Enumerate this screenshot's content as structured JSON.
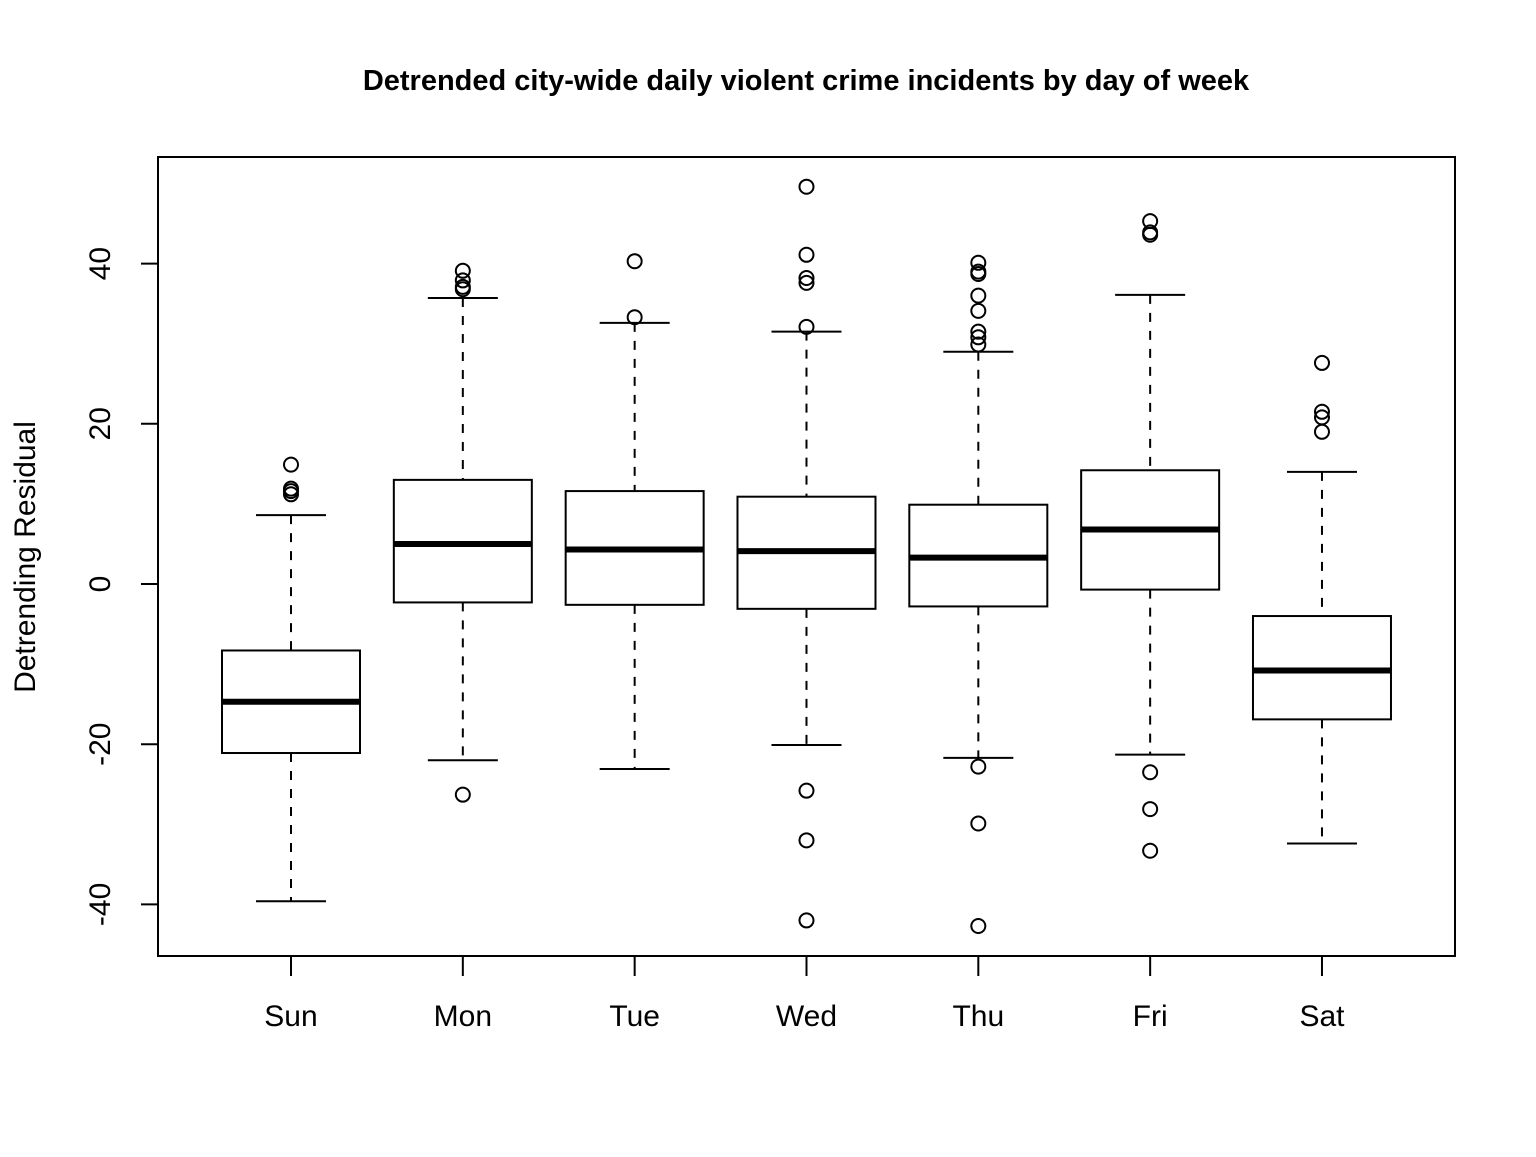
{
  "chart_data": {
    "type": "boxplot",
    "title": "Detrended city-wide daily violent crime incidents by day of week",
    "xlabel": "",
    "ylabel": "Detrending Residual",
    "ylim": [
      -46.5,
      53
    ],
    "y_ticks": [
      -40,
      -20,
      0,
      20,
      40
    ],
    "y_tick_labels": [
      "-40",
      "-20",
      "0",
      "20",
      "40"
    ],
    "grid": false,
    "legend": "none",
    "categories": [
      "Sun",
      "Mon",
      "Tue",
      "Wed",
      "Thu",
      "Fri",
      "Sat"
    ],
    "boxes": [
      {
        "category": "Sun",
        "whisker_low": -39.6,
        "q1": -21.1,
        "median": -14.7,
        "q3": -8.3,
        "whisker_high": 8.6,
        "outliers": [
          11.2,
          11.6,
          11.9,
          14.9
        ]
      },
      {
        "category": "Mon",
        "whisker_low": -22.0,
        "q1": -2.3,
        "median": 5.0,
        "q3": 13.0,
        "whisker_high": 35.7,
        "outliers": [
          -26.3,
          36.8,
          37.1,
          37.9,
          39.1
        ]
      },
      {
        "category": "Tue",
        "whisker_low": -23.1,
        "q1": -2.6,
        "median": 4.3,
        "q3": 11.6,
        "whisker_high": 32.6,
        "outliers": [
          33.3,
          40.3
        ]
      },
      {
        "category": "Wed",
        "whisker_low": -20.1,
        "q1": -3.1,
        "median": 4.1,
        "q3": 10.9,
        "whisker_high": 31.5,
        "outliers": [
          -42.0,
          -32.0,
          -25.8,
          32.1,
          37.6,
          38.2,
          41.1,
          49.6
        ]
      },
      {
        "category": "Thu",
        "whisker_low": -21.7,
        "q1": -2.8,
        "median": 3.3,
        "q3": 9.9,
        "whisker_high": 29.0,
        "outliers": [
          -42.7,
          -29.9,
          -22.8,
          29.9,
          30.8,
          31.5,
          34.1,
          36.0,
          38.7,
          39.0,
          40.1
        ]
      },
      {
        "category": "Fri",
        "whisker_low": -21.3,
        "q1": -0.7,
        "median": 6.8,
        "q3": 14.2,
        "whisker_high": 36.1,
        "outliers": [
          -33.3,
          -28.1,
          -23.5,
          43.6,
          43.9,
          45.3
        ]
      },
      {
        "category": "Sat",
        "whisker_low": -32.4,
        "q1": -16.9,
        "median": -10.8,
        "q3": -4.0,
        "whisker_high": 14.0,
        "outliers": [
          19.0,
          20.8,
          21.5,
          27.6
        ]
      }
    ]
  }
}
